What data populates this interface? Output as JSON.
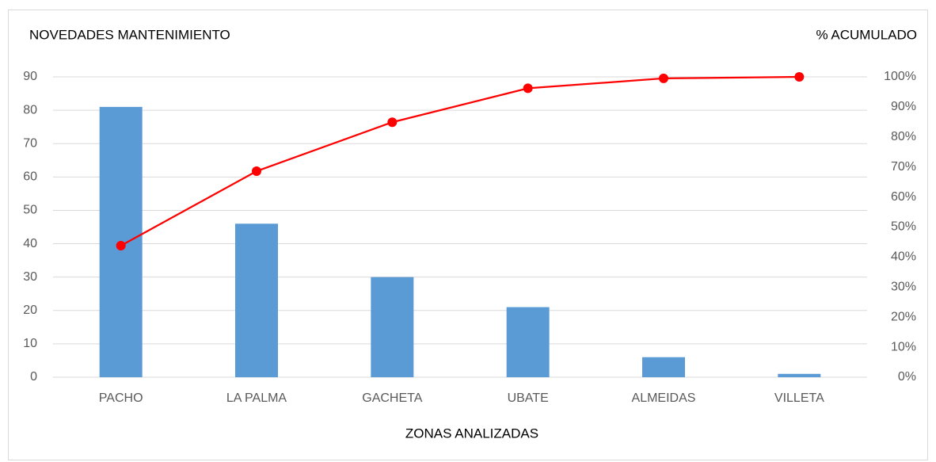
{
  "chart_data": {
    "type": "bar",
    "y_axis_label": "NOVEDADES MANTENIMIENTO",
    "y2_axis_label": "% ACUMULADO",
    "x_axis_label": "ZONAS ANALIZADAS",
    "categories": [
      "PACHO",
      "LA PALMA",
      "GACHETA",
      "UBATE",
      "ALMEIDAS",
      "VILLETA"
    ],
    "series": [
      {
        "type": "bar",
        "color": "#5b9bd5",
        "values": [
          81,
          46,
          30,
          21,
          6,
          1
        ]
      },
      {
        "type": "line",
        "axis": "y2",
        "color": "#ff0000",
        "values": [
          43.8,
          68.6,
          84.9,
          96.2,
          99.5,
          100
        ]
      }
    ],
    "ylim": [
      0,
      90
    ],
    "yticks": [
      0,
      10,
      20,
      30,
      40,
      50,
      60,
      70,
      80,
      90
    ],
    "y2lim": [
      0,
      100
    ],
    "y2ticks": [
      {
        "value": 0,
        "label": "0%"
      },
      {
        "value": 10,
        "label": "10%"
      },
      {
        "value": 20,
        "label": "20%"
      },
      {
        "value": 30,
        "label": "30%"
      },
      {
        "value": 40,
        "label": "40%"
      },
      {
        "value": 50,
        "label": "50%"
      },
      {
        "value": 60,
        "label": "60%"
      },
      {
        "value": 70,
        "label": "70%"
      },
      {
        "value": 80,
        "label": "80%"
      },
      {
        "value": 90,
        "label": "90%"
      },
      {
        "value": 100,
        "label": "100%"
      }
    ],
    "grid": true
  }
}
